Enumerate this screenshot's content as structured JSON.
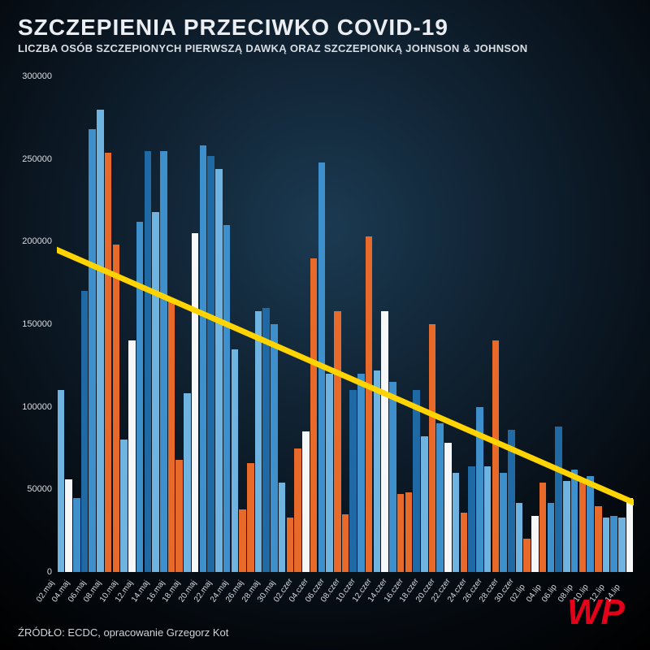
{
  "title": "SZCZEPIENIA PRZECIWKO COVID-19",
  "subtitle": "LICZBA OSÓB SZCZEPIONYCH PIERWSZĄ DAWKĄ ORAZ SZCZEPIONKĄ JOHNSON & JOHNSON",
  "source": "ŹRÓDŁO: ECDC, opracowanie Grzegorz Kot",
  "logo_text": "WP",
  "logo_color": "#e5001a",
  "chart": {
    "type": "bar",
    "ylim": [
      0,
      300000
    ],
    "ytick_step": 50000,
    "background": "radial-dark",
    "bar_gap_ratio": 0.12,
    "axis_text_color": "#d8dde2",
    "title_fontsize": 28,
    "subtitle_fontsize": 13,
    "label_fontsize": 11,
    "xlabel_rotation_deg": -55,
    "xtick_every": 2,
    "palette": {
      "blue1": "#1f6aa5",
      "blue2": "#3d90cc",
      "blue3": "#6fb3e0",
      "white": "#f5f7f9",
      "orange": "#e86a2b"
    },
    "categories": [
      "02.maj",
      "03.maj",
      "04.maj",
      "05.maj",
      "06.maj",
      "07.maj",
      "08.maj",
      "09.maj",
      "10.maj",
      "11.maj",
      "12.maj",
      "13.maj",
      "14.maj",
      "15.maj",
      "16.maj",
      "17.maj",
      "18.maj",
      "19.maj",
      "20.maj",
      "21.maj",
      "22.maj",
      "23.maj",
      "24.maj",
      "25.maj",
      "26.maj",
      "27.maj",
      "28.maj",
      "29.maj",
      "30.maj",
      "01.czer",
      "02.czer",
      "03.czer",
      "04.czer",
      "05.czer",
      "06.czer",
      "07.czer",
      "08.czer",
      "09.czer",
      "10.czer",
      "11.czer",
      "12.czer",
      "13.czer",
      "14.czer",
      "15.czer",
      "16.czer",
      "17.czer",
      "18.czer",
      "19.czer",
      "20.czer",
      "21.czer",
      "22.czer",
      "23.czer",
      "24.czer",
      "25.czer",
      "26.czer",
      "27.czer",
      "28.czer",
      "29.czer",
      "30.czer",
      "01.lip",
      "02.lip",
      "03.lip",
      "04.lip",
      "05.lip",
      "06.lip",
      "07.lip",
      "08.lip",
      "09.lip",
      "10.lip",
      "11.lip",
      "12.lip",
      "13.lip",
      "14.lip"
    ],
    "values": [
      110000,
      56000,
      45000,
      170000,
      268000,
      280000,
      254000,
      198000,
      80000,
      140000,
      212000,
      255000,
      218000,
      255000,
      165000,
      68000,
      108000,
      205000,
      258000,
      252000,
      244000,
      210000,
      135000,
      38000,
      66000,
      158000,
      160000,
      150000,
      54000,
      33000,
      75000,
      85000,
      190000,
      248000,
      120000,
      158000,
      35000,
      110000,
      120000,
      203000,
      122000,
      158000,
      115000,
      47000,
      48000,
      110000,
      82000,
      150000,
      90000,
      78000,
      60000,
      36000,
      64000,
      100000,
      64000,
      140000,
      60000,
      86000,
      42000,
      20000,
      34000,
      54000,
      42000,
      88000,
      55000,
      62000,
      55000,
      58000,
      40000,
      33000,
      34000,
      33000,
      45000
    ],
    "color_keys": [
      "blue3",
      "white",
      "blue2",
      "blue1",
      "blue2",
      "blue3",
      "orange",
      "orange",
      "blue3",
      "white",
      "blue2",
      "blue1",
      "blue3",
      "blue2",
      "orange",
      "orange",
      "blue3",
      "white",
      "blue2",
      "blue1",
      "blue3",
      "blue2",
      "blue3",
      "orange",
      "orange",
      "blue3",
      "blue1",
      "blue2",
      "blue3",
      "orange",
      "orange",
      "white",
      "orange",
      "blue2",
      "blue3",
      "orange",
      "orange",
      "blue1",
      "blue2",
      "orange",
      "blue3",
      "white",
      "blue2",
      "orange",
      "orange",
      "blue1",
      "blue3",
      "orange",
      "blue2",
      "white",
      "blue3",
      "orange",
      "blue1",
      "blue2",
      "blue3",
      "orange",
      "blue2",
      "blue1",
      "blue3",
      "orange",
      "white",
      "orange",
      "blue2",
      "blue1",
      "blue3",
      "blue2",
      "orange",
      "blue2",
      "orange",
      "blue3",
      "blue2",
      "blue3",
      "white"
    ],
    "trendline": {
      "color": "#ffd400",
      "width": 7,
      "y_start": 195000,
      "y_end": 42000
    }
  }
}
